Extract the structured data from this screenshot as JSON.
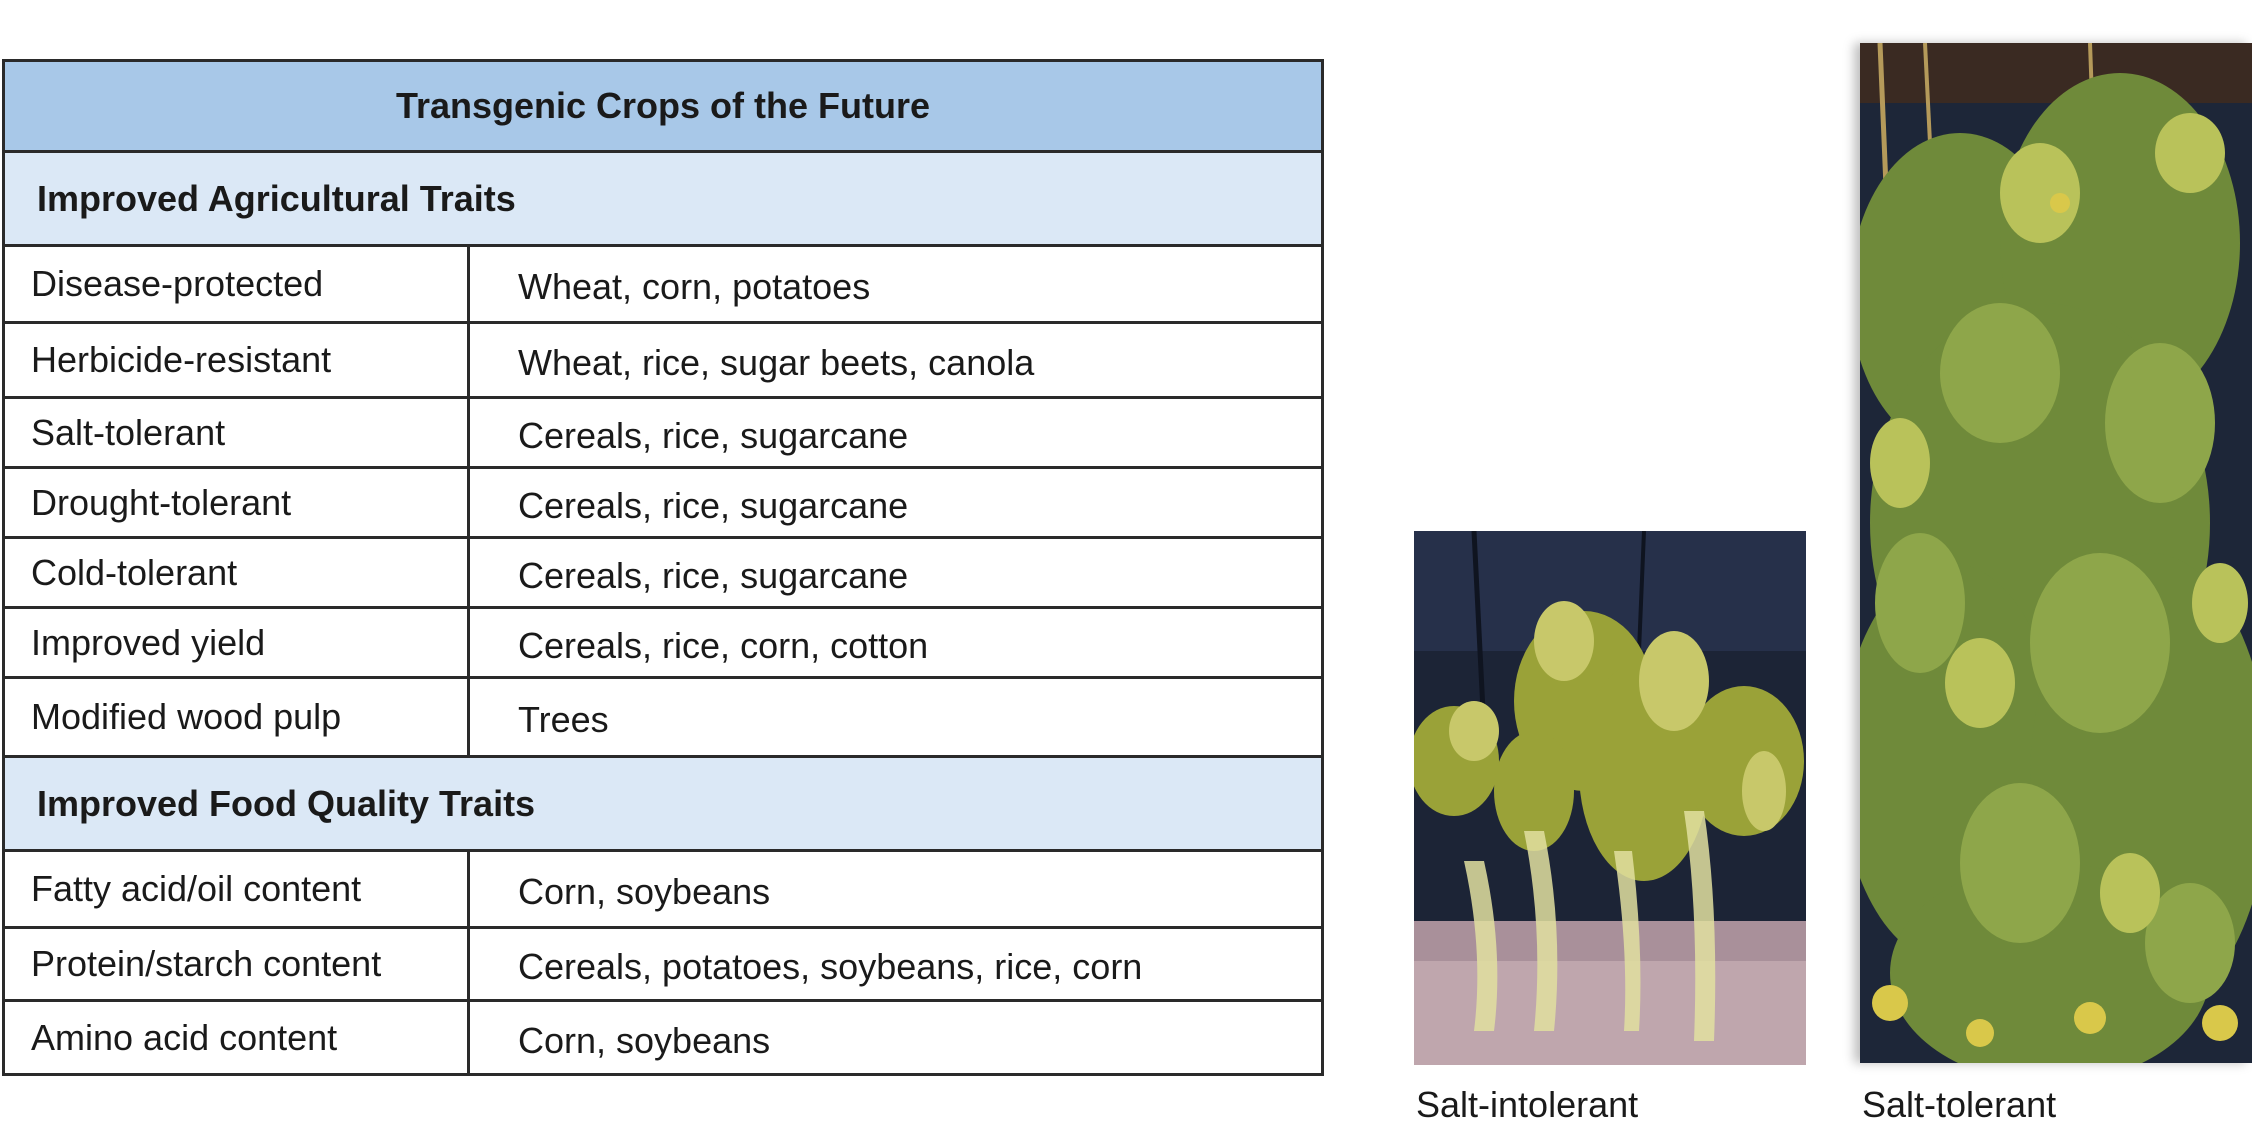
{
  "table": {
    "title": "Transgenic Crops of the Future",
    "sections": [
      {
        "heading": "Improved Agricultural Traits",
        "rows": [
          {
            "trait": "Disease-protected",
            "crops": "Wheat, corn, potatoes"
          },
          {
            "trait": "Herbicide-resistant",
            "crops": "Wheat, rice, sugar beets, canola"
          },
          {
            "trait": "Salt-tolerant",
            "crops": "Cereals, rice, sugarcane"
          },
          {
            "trait": "Drought-tolerant",
            "crops": "Cereals, rice, sugarcane"
          },
          {
            "trait": "Cold-tolerant",
            "crops": "Cereals, rice, sugarcane"
          },
          {
            "trait": "Improved yield",
            "crops": "Cereals, rice, corn, cotton"
          },
          {
            "trait": "Modified wood pulp",
            "crops": "Trees"
          }
        ]
      },
      {
        "heading": "Improved Food Quality Traits",
        "rows": [
          {
            "trait": "Fatty acid/oil content",
            "crops": "Corn, soybeans"
          },
          {
            "trait": "Protein/starch content",
            "crops": "Cereals, potatoes, soybeans, rice, corn"
          },
          {
            "trait": "Amino acid content",
            "crops": "Corn, soybeans"
          }
        ]
      }
    ]
  },
  "photos": {
    "left_caption": "Salt-intolerant",
    "right_caption": "Salt-tolerant"
  },
  "colors": {
    "title_bg": "#a8c8e8",
    "section_bg": "#dbe8f6",
    "border": "#2a2a2a"
  }
}
